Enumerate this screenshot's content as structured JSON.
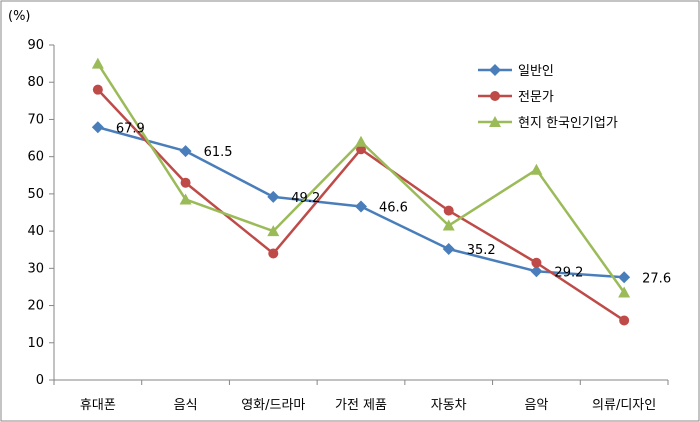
{
  "chart_data": {
    "type": "line",
    "title": "",
    "xlabel": "",
    "ylabel": "",
    "y_unit_label": "(%)",
    "ylim": [
      0,
      90
    ],
    "y_ticks": [
      "0",
      "10",
      "20",
      "30",
      "40",
      "50",
      "60",
      "70",
      "80",
      "90"
    ],
    "grid": false,
    "legend_position": "top-right",
    "categories": [
      "휴대폰",
      "음식",
      "영화/드라마",
      "가전 제품",
      "자동차",
      "음악",
      "의류/디자인"
    ],
    "series": [
      {
        "name": "일반인",
        "color": "#4a7ebb",
        "marker": "diamond",
        "values": [
          67.9,
          61.5,
          49.2,
          46.6,
          35.2,
          29.2,
          27.6
        ],
        "labels": [
          "67.9",
          "61.5",
          "49.2",
          "46.6",
          "35.2",
          "29.2",
          "27.6"
        ]
      },
      {
        "name": "전문가",
        "color": "#be4b48",
        "marker": "circle",
        "values": [
          78,
          53,
          34,
          62,
          45.5,
          31.5,
          16
        ]
      },
      {
        "name": "현지 한국인기업가",
        "color": "#9bbb59",
        "marker": "triangle",
        "values": [
          85,
          48.5,
          40,
          64,
          41.5,
          56.5,
          23.5
        ]
      }
    ]
  }
}
